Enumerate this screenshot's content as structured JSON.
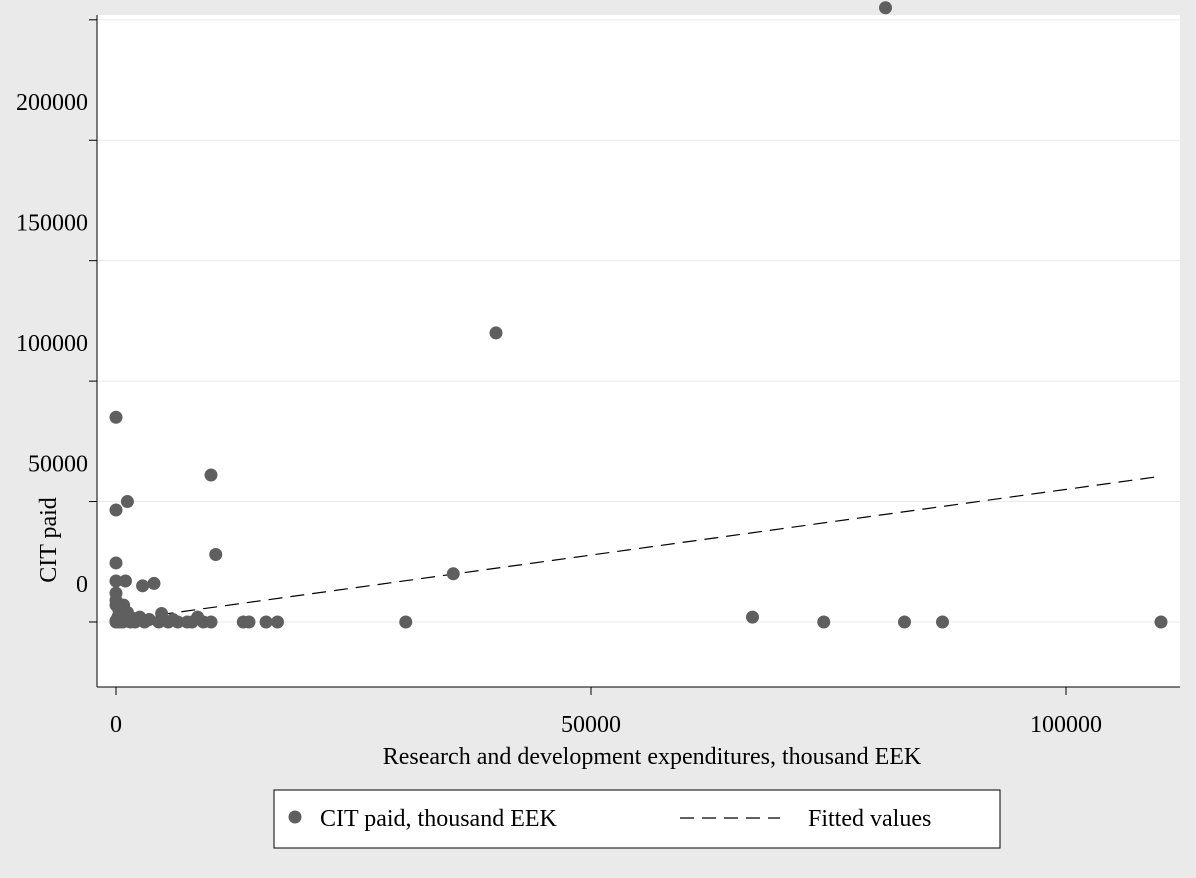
{
  "chart_data": {
    "type": "scatter",
    "title": "",
    "xlabel": "Research and development expenditures, thousand EEK",
    "ylabel": "CIT paid",
    "xlim": [
      -2000,
      112000
    ],
    "ylim": [
      -27000,
      252000
    ],
    "xticks": [
      0,
      50000,
      100000
    ],
    "yticks": [
      0,
      50000,
      100000,
      150000,
      200000,
      250000
    ],
    "grid": "horizontal",
    "legend_position": "bottom",
    "colors": {
      "background": "#eaeaea",
      "plot_area": "#ffffff",
      "marker": "#5f5f5f",
      "fit_line": "#000000",
      "grid": "#eaeaea"
    },
    "series": [
      {
        "name": "CIT paid, thousand EEK",
        "kind": "scatter",
        "points": [
          [
            81000,
            255000
          ],
          [
            40000,
            120000
          ],
          [
            0,
            85000
          ],
          [
            10000,
            61000
          ],
          [
            1200,
            50000
          ],
          [
            0,
            46500
          ],
          [
            10500,
            28000
          ],
          [
            0,
            24500
          ],
          [
            35500,
            20000
          ],
          [
            0,
            17000
          ],
          [
            1000,
            17000
          ],
          [
            4000,
            16000
          ],
          [
            2800,
            15000
          ],
          [
            0,
            12000
          ],
          [
            0,
            9000
          ],
          [
            0,
            7000
          ],
          [
            800,
            7000
          ],
          [
            300,
            5000
          ],
          [
            1200,
            4000
          ],
          [
            500,
            3000
          ],
          [
            4800,
            3500
          ],
          [
            8600,
            2000
          ],
          [
            200,
            2000
          ],
          [
            67000,
            2000
          ],
          [
            2500,
            2000
          ],
          [
            1800,
            1500
          ],
          [
            3500,
            1000
          ],
          [
            6000,
            1000
          ],
          [
            0,
            500
          ],
          [
            0,
            0
          ],
          [
            300,
            0
          ],
          [
            700,
            0
          ],
          [
            1500,
            0
          ],
          [
            2000,
            0
          ],
          [
            3000,
            0
          ],
          [
            4500,
            0
          ],
          [
            5500,
            0
          ],
          [
            6500,
            0
          ],
          [
            7500,
            0
          ],
          [
            8000,
            0
          ],
          [
            9200,
            0
          ],
          [
            10000,
            0
          ],
          [
            13400,
            0
          ],
          [
            14000,
            0
          ],
          [
            15800,
            0
          ],
          [
            17000,
            0
          ],
          [
            30500,
            0
          ],
          [
            74500,
            0
          ],
          [
            83000,
            0
          ],
          [
            87000,
            0
          ],
          [
            110000,
            0
          ]
        ]
      },
      {
        "name": "Fitted values",
        "kind": "line",
        "style": "dashed",
        "points": [
          [
            0,
            500
          ],
          [
            110000,
            60500
          ]
        ]
      }
    ]
  }
}
